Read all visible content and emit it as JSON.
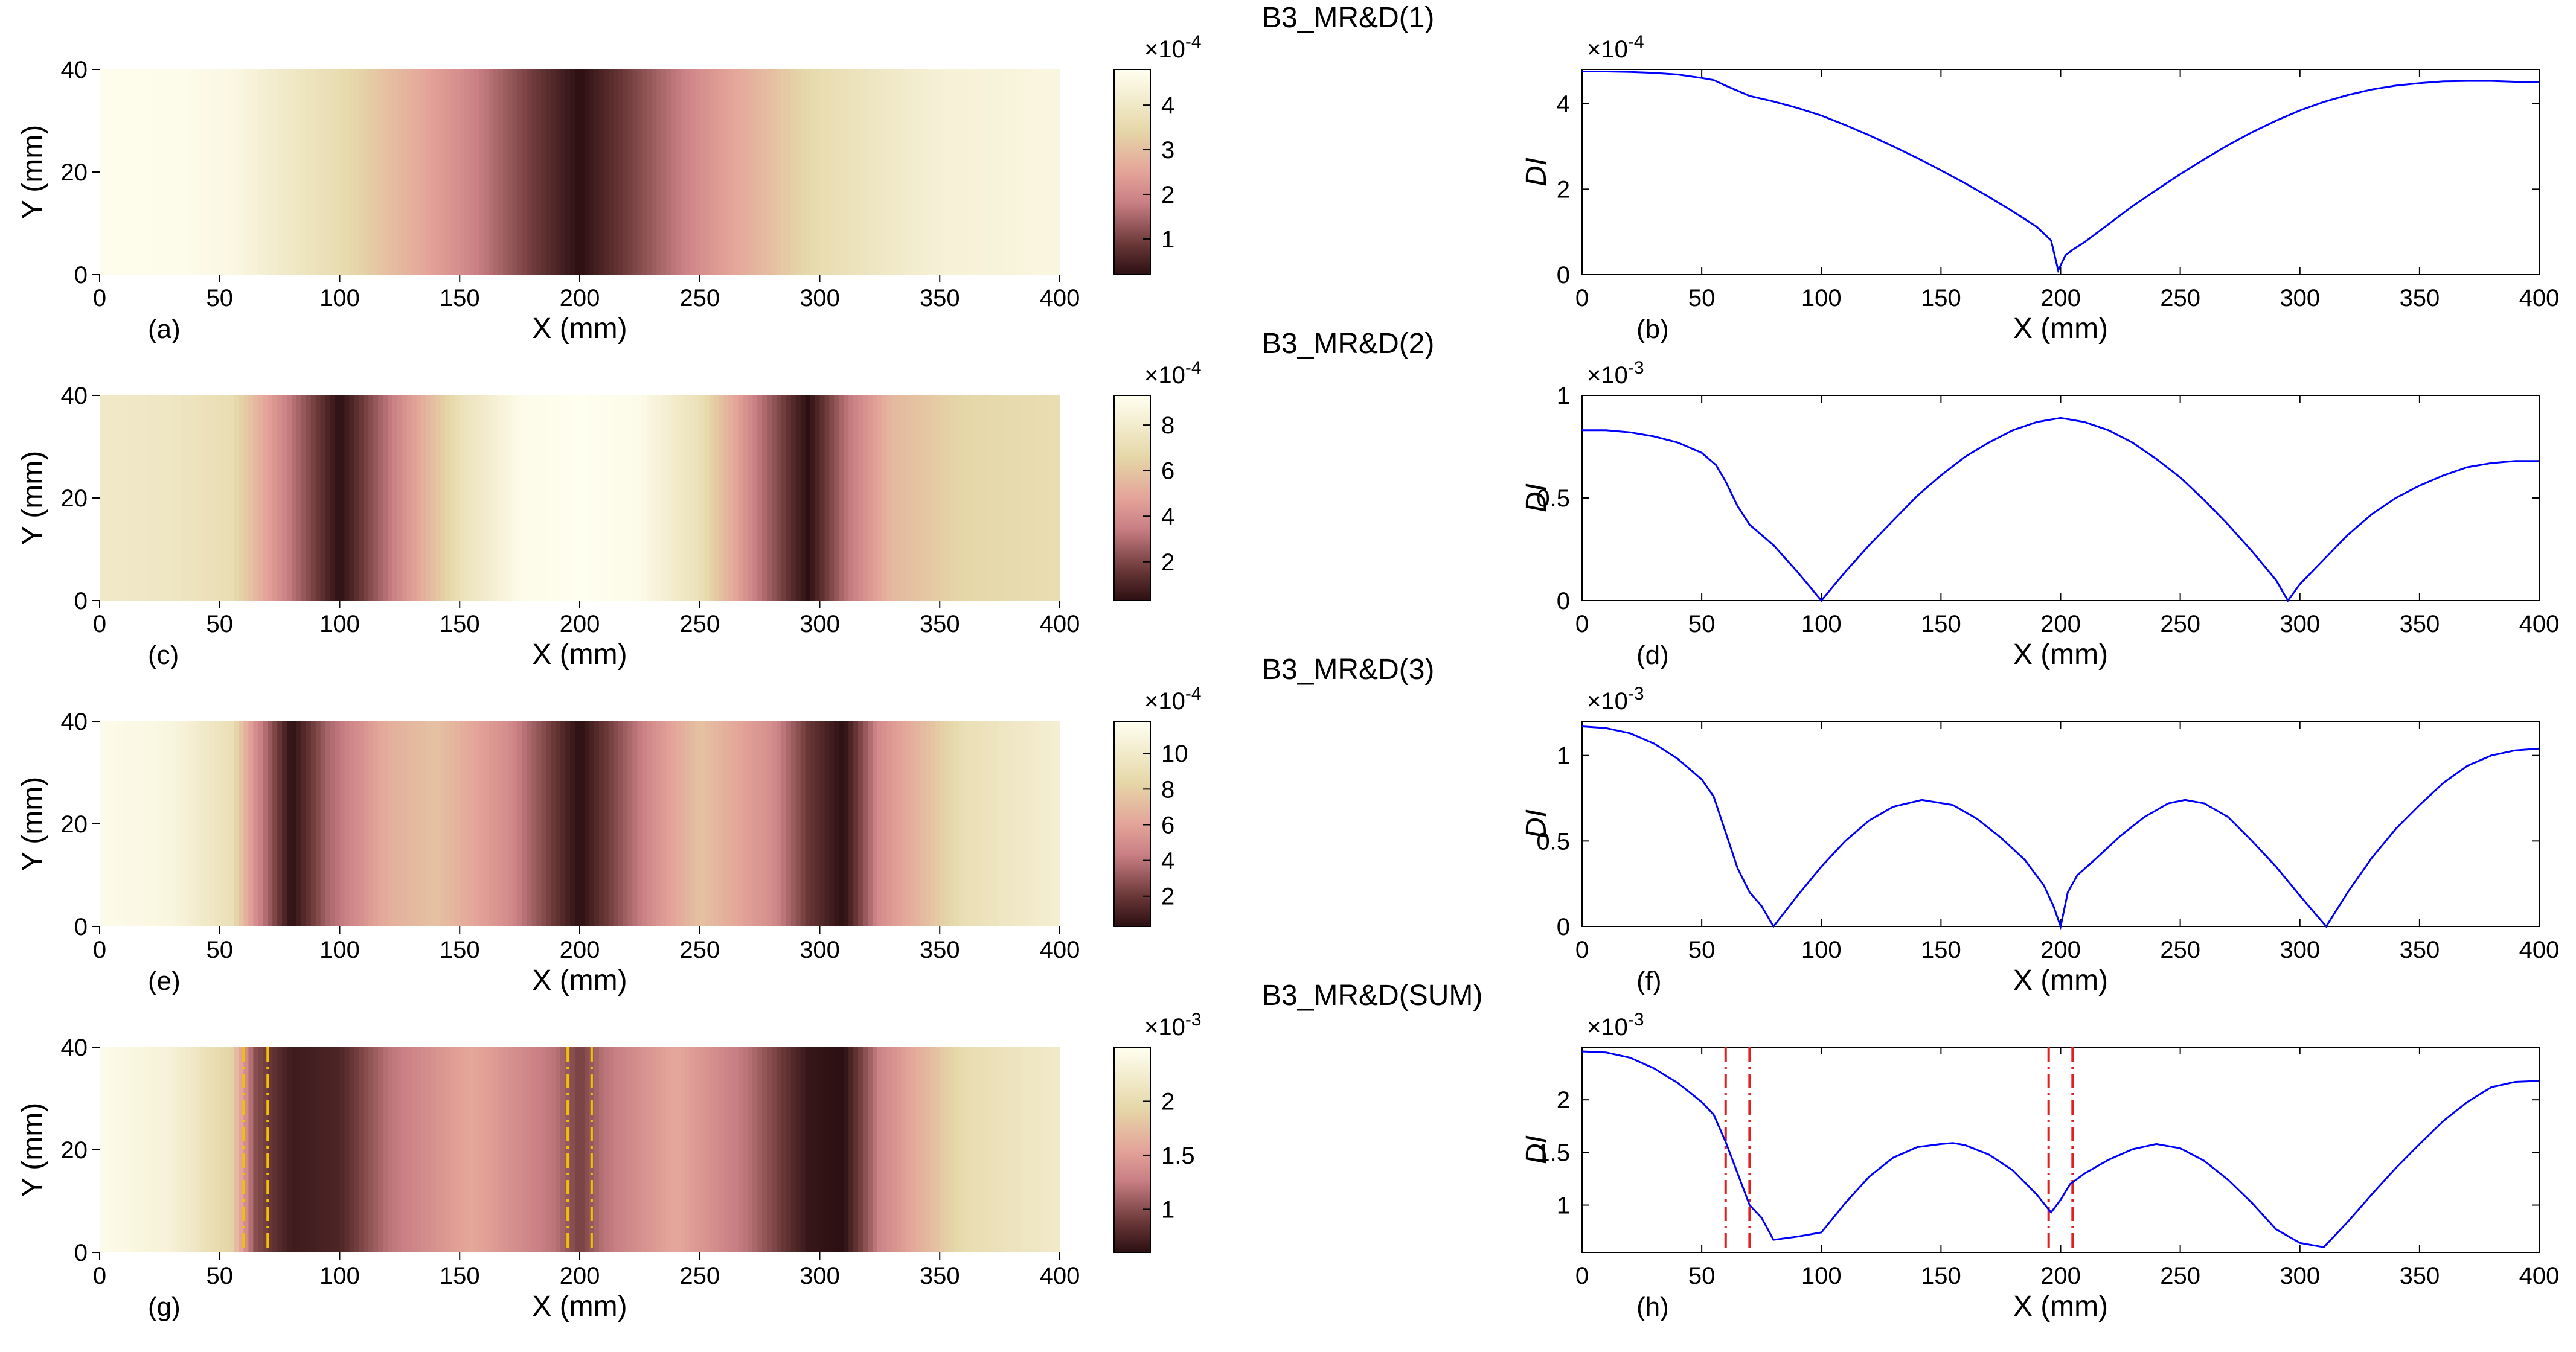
{
  "chart_data": [
    {
      "type": "heatmap",
      "panel": "(a)",
      "colorbar_title": "B3_MR&D(1)",
      "colorbar_exponent": "-4",
      "colorbar_ticks": [
        "1",
        "2",
        "3",
        "4"
      ],
      "colorbar_range": [
        0.2,
        4.8
      ],
      "xlabel": "X (mm)",
      "ylabel": "Y (mm)",
      "xlim": [
        0,
        400
      ],
      "ylim": [
        0,
        40
      ],
      "xticks": [
        "0",
        "50",
        "100",
        "150",
        "200",
        "250",
        "300",
        "350",
        "400"
      ],
      "yticks": [
        "0",
        "20",
        "40"
      ],
      "guides": [],
      "profile_x": [
        0,
        20,
        40,
        55,
        70,
        100,
        150,
        200,
        250,
        300,
        350,
        400
      ],
      "profile_values": [
        4.74,
        4.72,
        4.65,
        4.55,
        4.2,
        3.6,
        2.1,
        0.2,
        2.1,
        3.6,
        4.3,
        4.5
      ]
    },
    {
      "type": "line",
      "panel": "(b)",
      "exponent": "-4",
      "xlabel": "X (mm)",
      "ylabel": "DI",
      "xlim": [
        0,
        400
      ],
      "ylim": [
        0,
        4.8
      ],
      "xticks": [
        "0",
        "50",
        "100",
        "150",
        "200",
        "250",
        "300",
        "350",
        "400"
      ],
      "yticks": [
        {
          "v": 0,
          "t": "0"
        },
        {
          "v": 2,
          "t": "2"
        },
        {
          "v": 4,
          "t": "4"
        }
      ],
      "guides": [],
      "series": [
        {
          "name": "DI",
          "x": [
            0,
            10,
            20,
            30,
            40,
            50,
            55,
            60,
            70,
            80,
            90,
            100,
            110,
            120,
            130,
            140,
            150,
            160,
            170,
            180,
            190,
            196,
            199,
            202,
            205,
            210,
            220,
            230,
            240,
            250,
            260,
            270,
            280,
            290,
            300,
            310,
            320,
            330,
            340,
            350,
            360,
            370,
            380,
            390,
            400
          ],
          "y": [
            4.75,
            4.75,
            4.74,
            4.72,
            4.68,
            4.6,
            4.55,
            4.42,
            4.18,
            4.05,
            3.9,
            3.72,
            3.5,
            3.26,
            3.0,
            2.73,
            2.44,
            2.14,
            1.82,
            1.48,
            1.12,
            0.8,
            0.1,
            0.45,
            0.58,
            0.76,
            1.18,
            1.6,
            1.98,
            2.35,
            2.7,
            3.03,
            3.33,
            3.6,
            3.84,
            4.04,
            4.2,
            4.33,
            4.42,
            4.48,
            4.52,
            4.53,
            4.53,
            4.51,
            4.5
          ]
        }
      ]
    },
    {
      "type": "heatmap",
      "panel": "(c)",
      "colorbar_title": "B3_MR&D(2)",
      "colorbar_exponent": "-4",
      "colorbar_ticks": [
        "2",
        "4",
        "6",
        "8"
      ],
      "colorbar_range": [
        0.3,
        9.3
      ],
      "xlabel": "X (mm)",
      "ylabel": "Y (mm)",
      "xlim": [
        0,
        400
      ],
      "ylim": [
        0,
        40
      ],
      "xticks": [
        "0",
        "50",
        "100",
        "150",
        "200",
        "250",
        "300",
        "350",
        "400"
      ],
      "yticks": [
        "0",
        "20",
        "40"
      ],
      "guides": [],
      "profile_x": [
        0,
        30,
        55,
        65,
        80,
        100,
        120,
        150,
        175,
        200,
        225,
        250,
        275,
        295,
        310,
        330,
        360,
        400
      ],
      "profile_values": [
        7.8,
        7.6,
        7.0,
        5.5,
        3.2,
        0.3,
        3.2,
        7.2,
        9.0,
        9.3,
        9.0,
        7.2,
        3.2,
        0.3,
        3.0,
        5.5,
        6.6,
        7.0
      ]
    },
    {
      "type": "line",
      "panel": "(d)",
      "exponent": "-3",
      "xlabel": "X (mm)",
      "ylabel": "DI",
      "xlim": [
        0,
        400
      ],
      "ylim": [
        0,
        1
      ],
      "xticks": [
        "0",
        "50",
        "100",
        "150",
        "200",
        "250",
        "300",
        "350",
        "400"
      ],
      "yticks": [
        {
          "v": 0,
          "t": "0"
        },
        {
          "v": 0.5,
          "t": "0.5"
        },
        {
          "v": 1,
          "t": "1"
        }
      ],
      "guides": [],
      "series": [
        {
          "name": "DI",
          "x": [
            0,
            10,
            20,
            30,
            40,
            50,
            56,
            60,
            65,
            70,
            80,
            90,
            100,
            110,
            120,
            130,
            140,
            150,
            160,
            170,
            180,
            190,
            200,
            210,
            220,
            230,
            240,
            250,
            260,
            270,
            280,
            290,
            295,
            300,
            310,
            320,
            330,
            340,
            350,
            360,
            370,
            380,
            390,
            400
          ],
          "y": [
            0.83,
            0.83,
            0.82,
            0.8,
            0.77,
            0.72,
            0.66,
            0.58,
            0.46,
            0.37,
            0.27,
            0.14,
            0.0,
            0.14,
            0.27,
            0.39,
            0.51,
            0.61,
            0.7,
            0.77,
            0.83,
            0.87,
            0.89,
            0.87,
            0.83,
            0.77,
            0.69,
            0.6,
            0.49,
            0.37,
            0.24,
            0.1,
            0.0,
            0.08,
            0.2,
            0.32,
            0.42,
            0.5,
            0.56,
            0.61,
            0.65,
            0.67,
            0.68,
            0.68
          ]
        }
      ]
    },
    {
      "type": "heatmap",
      "panel": "(e)",
      "colorbar_title": "B3_MR&D(3)",
      "colorbar_exponent": "-4",
      "colorbar_ticks": [
        "2",
        "4",
        "6",
        "8",
        "10"
      ],
      "colorbar_range": [
        0.3,
        11.8
      ],
      "xlabel": "X (mm)",
      "ylabel": "Y (mm)",
      "xlim": [
        0,
        400
      ],
      "ylim": [
        0,
        40
      ],
      "xticks": [
        "0",
        "50",
        "100",
        "150",
        "200",
        "250",
        "300",
        "350",
        "400"
      ],
      "yticks": [
        "0",
        "20",
        "40"
      ],
      "guides": [],
      "profile_x": [
        0,
        30,
        55,
        65,
        80,
        95,
        120,
        140,
        170,
        200,
        230,
        250,
        280,
        295,
        310,
        325,
        360,
        400
      ],
      "profile_values": [
        11.5,
        11.0,
        9.0,
        5.0,
        0.3,
        3.5,
        6.5,
        7.4,
        5.0,
        0.3,
        5.0,
        7.4,
        5.0,
        2.0,
        0.3,
        5.0,
        9.0,
        10.4
      ]
    },
    {
      "type": "line",
      "panel": "(f)",
      "exponent": "-3",
      "xlabel": "X (mm)",
      "ylabel": "DI",
      "xlim": [
        0,
        400
      ],
      "ylim": [
        0,
        1.2
      ],
      "xticks": [
        "0",
        "50",
        "100",
        "150",
        "200",
        "250",
        "300",
        "350",
        "400"
      ],
      "yticks": [
        {
          "v": 0,
          "t": "0"
        },
        {
          "v": 0.5,
          "t": "0.5"
        },
        {
          "v": 1,
          "t": "1"
        }
      ],
      "guides": [],
      "series": [
        {
          "name": "DI",
          "x": [
            0,
            10,
            20,
            30,
            40,
            50,
            55,
            60,
            65,
            70,
            75,
            80,
            90,
            100,
            110,
            120,
            130,
            142,
            155,
            165,
            175,
            185,
            193,
            197,
            200,
            203,
            207,
            215,
            225,
            235,
            245,
            252,
            260,
            270,
            280,
            290,
            300,
            311,
            320,
            330,
            340,
            350,
            360,
            370,
            380,
            390,
            400
          ],
          "y": [
            1.17,
            1.16,
            1.13,
            1.07,
            0.98,
            0.86,
            0.76,
            0.55,
            0.34,
            0.2,
            0.12,
            0.0,
            0.18,
            0.35,
            0.5,
            0.62,
            0.7,
            0.74,
            0.71,
            0.63,
            0.52,
            0.39,
            0.24,
            0.12,
            0.0,
            0.2,
            0.3,
            0.4,
            0.53,
            0.64,
            0.72,
            0.74,
            0.72,
            0.64,
            0.5,
            0.35,
            0.18,
            0.0,
            0.2,
            0.4,
            0.57,
            0.71,
            0.84,
            0.94,
            1.0,
            1.03,
            1.04
          ]
        }
      ]
    },
    {
      "type": "heatmap",
      "panel": "(g)",
      "colorbar_title": "B3_MR&D(SUM)",
      "colorbar_exponent": "-3",
      "colorbar_ticks": [
        "1",
        "1.5",
        "2"
      ],
      "colorbar_range": [
        0.6,
        2.5
      ],
      "xlabel": "X (mm)",
      "ylabel": "Y (mm)",
      "xlim": [
        0,
        400
      ],
      "ylim": [
        0,
        40
      ],
      "xticks": [
        "0",
        "50",
        "100",
        "150",
        "200",
        "250",
        "300",
        "350",
        "400"
      ],
      "yticks": [
        "0",
        "20",
        "40"
      ],
      "guides": [
        60,
        70,
        195,
        205
      ],
      "profile_x": [
        0,
        30,
        55,
        65,
        80,
        100,
        120,
        155,
        190,
        200,
        210,
        240,
        270,
        295,
        310,
        325,
        360,
        400
      ],
      "profile_values": [
        2.45,
        2.3,
        1.9,
        1.0,
        0.68,
        0.75,
        1.2,
        1.58,
        1.2,
        0.92,
        1.2,
        1.58,
        1.2,
        0.65,
        0.6,
        1.3,
        2.0,
        2.2
      ]
    },
    {
      "type": "line",
      "panel": "(h)",
      "exponent": "-3",
      "xlabel": "X (mm)",
      "ylabel": "DI",
      "xlim": [
        0,
        400
      ],
      "ylim": [
        0.55,
        2.5
      ],
      "xticks": [
        "0",
        "50",
        "100",
        "150",
        "200",
        "250",
        "300",
        "350",
        "400"
      ],
      "yticks": [
        {
          "v": 1,
          "t": "1"
        },
        {
          "v": 1.5,
          "t": "1.5"
        },
        {
          "v": 2,
          "t": "2"
        }
      ],
      "guides": [
        60,
        70,
        195,
        205
      ],
      "series": [
        {
          "name": "DI",
          "x": [
            0,
            10,
            20,
            30,
            40,
            50,
            55,
            60,
            65,
            70,
            75,
            80,
            90,
            100,
            110,
            120,
            130,
            140,
            150,
            155,
            160,
            170,
            180,
            190,
            196,
            200,
            204,
            210,
            220,
            230,
            240,
            250,
            260,
            270,
            280,
            290,
            300,
            310,
            320,
            330,
            340,
            350,
            360,
            370,
            380,
            390,
            400
          ],
          "y": [
            2.46,
            2.45,
            2.4,
            2.3,
            2.16,
            1.98,
            1.86,
            1.6,
            1.3,
            1.0,
            0.88,
            0.67,
            0.7,
            0.74,
            1.02,
            1.27,
            1.45,
            1.55,
            1.58,
            1.59,
            1.57,
            1.48,
            1.33,
            1.1,
            0.93,
            1.05,
            1.2,
            1.3,
            1.43,
            1.53,
            1.58,
            1.54,
            1.42,
            1.24,
            1.02,
            0.77,
            0.64,
            0.6,
            0.84,
            1.1,
            1.35,
            1.58,
            1.8,
            1.98,
            2.12,
            2.17,
            2.18
          ]
        }
      ]
    }
  ]
}
